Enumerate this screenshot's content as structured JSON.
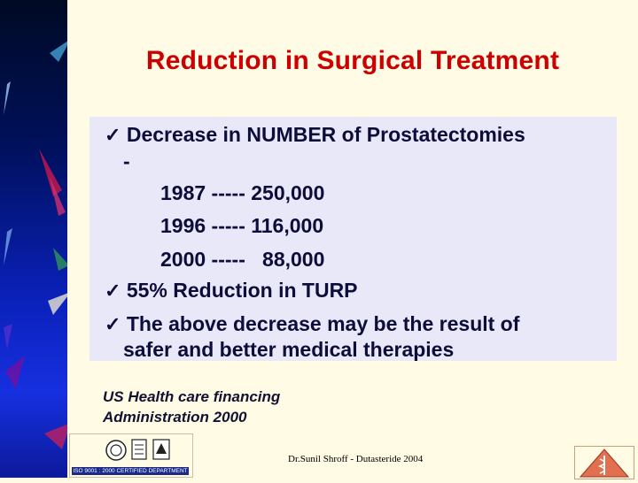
{
  "slide": {
    "title": "Reduction in Surgical Treatment",
    "bullets": {
      "b1_text": "Decrease in NUMBER of Prostatectomies",
      "b1_dash": "-",
      "rows": [
        "1987 ----- 250,000",
        "1996 ----- 116,000",
        "2000 -----   88,000"
      ],
      "b2_text": "55% Reduction in TURP",
      "b3_line1": "The above decrease may be the result of",
      "b3_line2": "safer and better medical therapies"
    },
    "source_line1": "US Health care financing",
    "source_line2": "Administration 2000",
    "footer": "Dr.Sunil Shroff - Dutasteride 2004",
    "iso_caption": "ISO 9001 : 2000 CERTIFIED DEPARTMENT"
  },
  "colors": {
    "title": "#cc0000",
    "background": "#fffbe4",
    "content_box": "#e8e8f8",
    "sidebar": "#0a20b8"
  },
  "icons": [
    "checkmark-icon",
    "iso-certification-logo",
    "medical-emblem-icon"
  ]
}
